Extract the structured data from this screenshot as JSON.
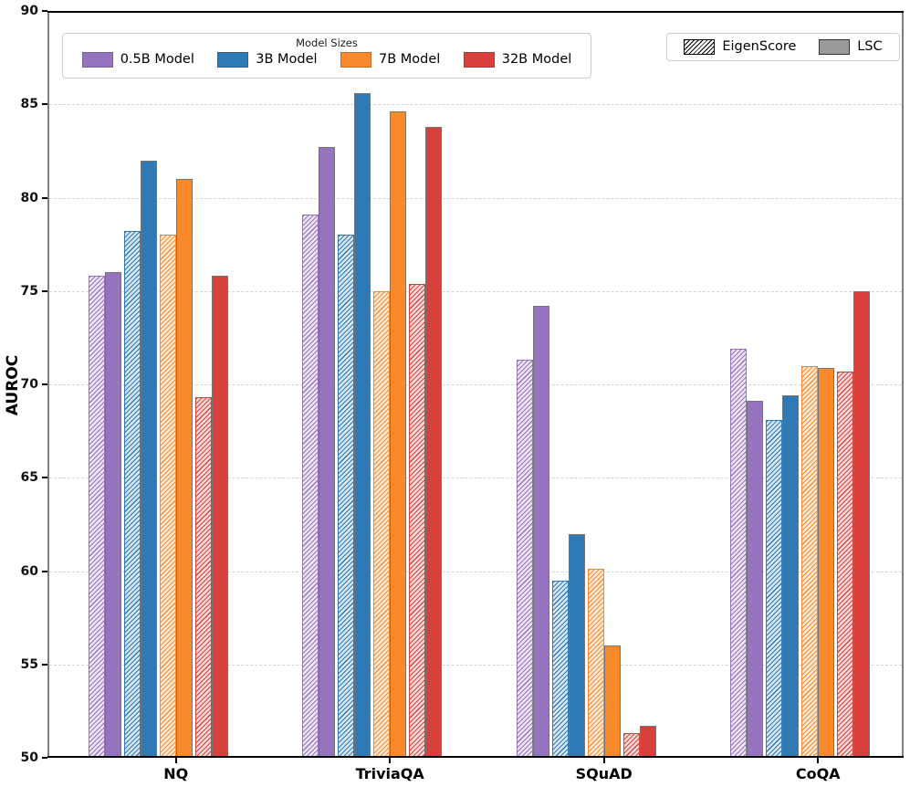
{
  "chart_data": {
    "type": "bar",
    "title": "",
    "xlabel": "",
    "ylabel": "AUROC",
    "ylim": [
      50,
      90
    ],
    "yticks": [
      50,
      55,
      60,
      65,
      70,
      75,
      80,
      85,
      90
    ],
    "grid": "horizontal dashed",
    "categories": [
      "NQ",
      "TriviaQA",
      "SQuAD",
      "CoQA"
    ],
    "methods": [
      "EigenScore",
      "LSC"
    ],
    "legend_models_title": "Model Sizes",
    "legend_models_position": "upper left",
    "legend_methods_position": "upper right",
    "series": [
      {
        "name": "0.5B Model",
        "color": "#9573BE",
        "tint": "#EDE5F5",
        "eigenscore": [
          75.8,
          79.1,
          71.3,
          71.9
        ],
        "lsc": [
          76.0,
          82.7,
          74.2,
          69.1
        ]
      },
      {
        "name": "3B Model",
        "color": "#2F79B5",
        "tint": "#D7E7F3",
        "eigenscore": [
          78.2,
          78.0,
          59.5,
          68.1
        ],
        "lsc": [
          82.0,
          85.6,
          62.0,
          69.4
        ]
      },
      {
        "name": "7B Model",
        "color": "#F88A2C",
        "tint": "#FDEBD9",
        "eigenscore": [
          78.0,
          75.0,
          60.1,
          71.0
        ],
        "lsc": [
          81.0,
          84.6,
          56.0,
          70.9
        ]
      },
      {
        "name": "32B Model",
        "color": "#D7403C",
        "tint": "#F9DBD9",
        "eigenscore": [
          69.3,
          75.4,
          51.3,
          70.7
        ],
        "lsc": [
          75.8,
          83.8,
          51.7,
          75.0
        ]
      }
    ],
    "method_styles": {
      "EigenScore": "hatched",
      "LSC": "solid"
    },
    "solid_edge_color": "#757575",
    "gridline_color": "#d4d4d4"
  }
}
